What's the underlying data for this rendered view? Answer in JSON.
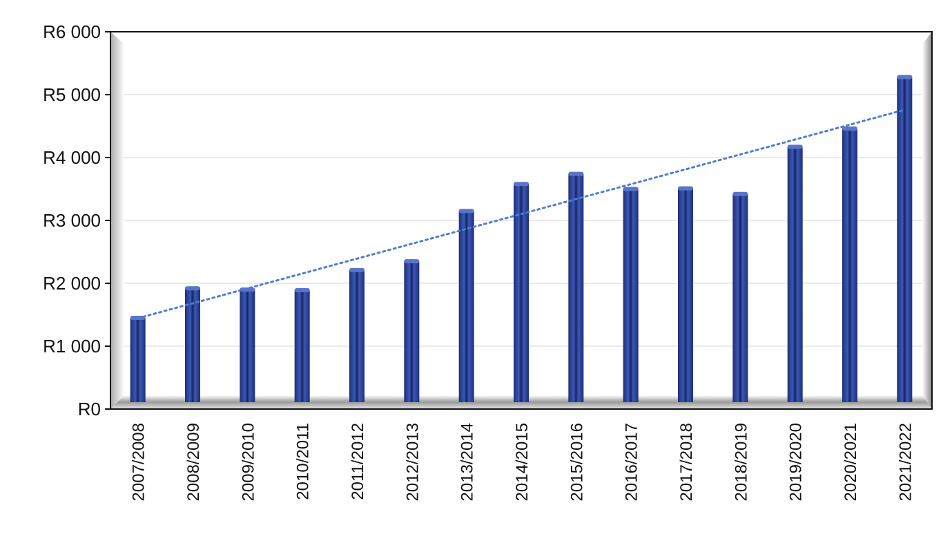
{
  "chart_data": {
    "type": "bar",
    "title": "",
    "xlabel": "",
    "ylabel": "",
    "categories": [
      "2007/2008",
      "2008/2009",
      "2009/2010",
      "2010/2011",
      "2011/2012",
      "2012/2013",
      "2013/2014",
      "2014/2015",
      "2015/2016",
      "2016/2017",
      "2017/2018",
      "2018/2019",
      "2019/2020",
      "2020/2021",
      "2021/2022"
    ],
    "values": [
      1450,
      1920,
      1900,
      1890,
      2210,
      2350,
      3150,
      3580,
      3740,
      3500,
      3510,
      3420,
      4170,
      4460,
      5280
    ],
    "ylim": [
      0,
      6000
    ],
    "yticks": [
      0,
      1000,
      2000,
      3000,
      4000,
      5000,
      6000
    ],
    "ytick_labels": [
      "R0",
      "R1 000",
      "R2 000",
      "R3 000",
      "R4 000",
      "R5 000",
      "R6 000"
    ],
    "trendline": {
      "type": "linear",
      "style": "dotted",
      "color": "#4f7ccf"
    },
    "bar_color": "#2f4aa0",
    "grid": true,
    "legend": "none"
  }
}
